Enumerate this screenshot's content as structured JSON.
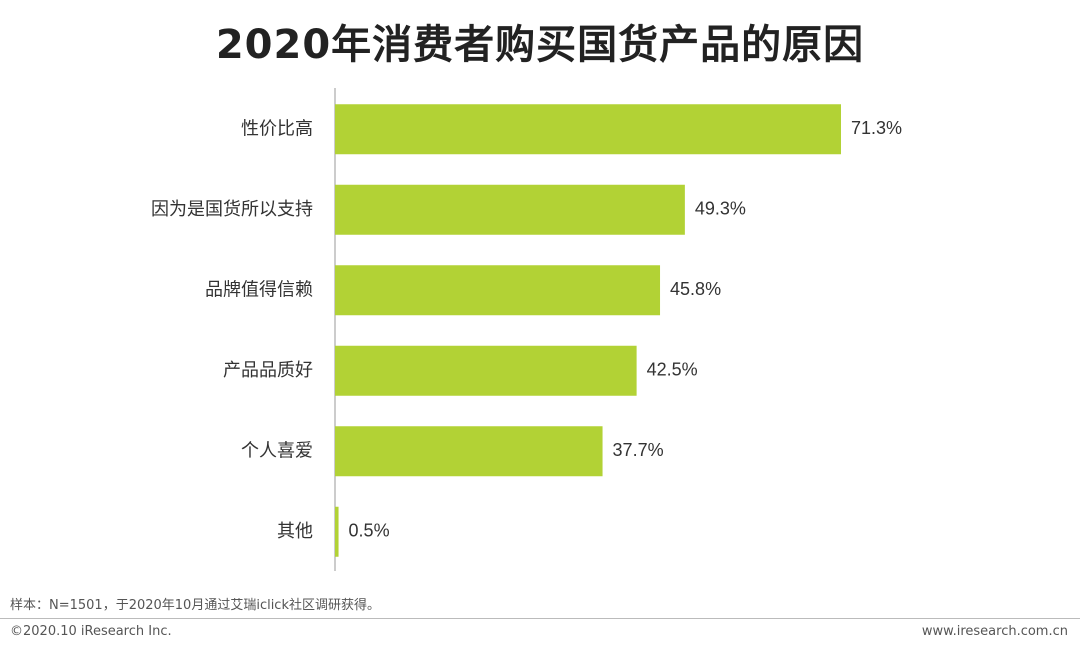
{
  "chart_data": {
    "type": "bar",
    "orientation": "horizontal",
    "title": "2020年消费者购买国货产品的原因",
    "categories": [
      "性价比高",
      "因为是国货所以支持",
      "品牌值得信赖",
      "产品品质好",
      "个人喜爱",
      "其他"
    ],
    "values": [
      71.3,
      49.3,
      45.8,
      42.5,
      37.7,
      0.5
    ],
    "value_labels": [
      "71.3%",
      "49.3%",
      "45.8%",
      "42.5%",
      "37.7%",
      "0.5%"
    ],
    "unit": "%",
    "xlim": [
      0,
      100
    ],
    "grid": false,
    "bar_color": "#b2d235"
  },
  "footer": {
    "note": "样本：N=1501，于2020年10月通过艾瑞iclick社区调研获得。",
    "copyright": "©2020.10 iResearch Inc.",
    "website": "www.iresearch.com.cn"
  }
}
